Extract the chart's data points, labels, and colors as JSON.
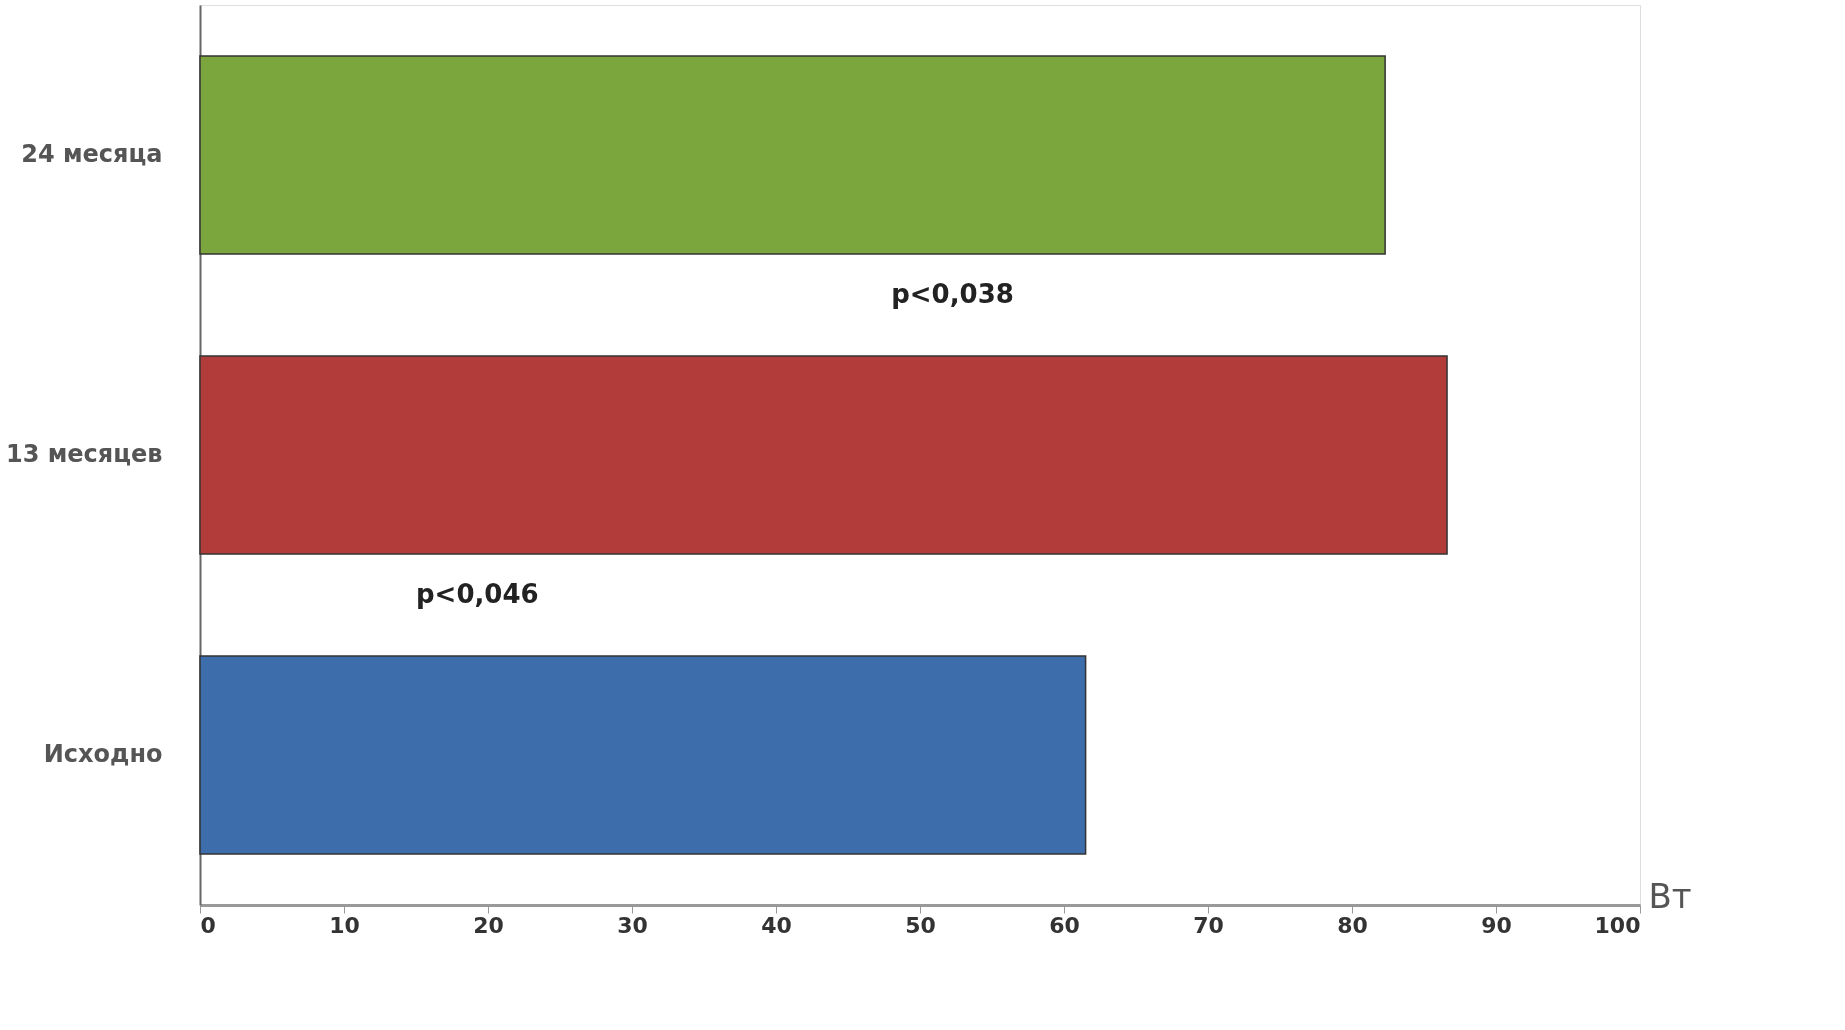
{
  "chart_data": {
    "type": "bar",
    "orientation": "horizontal",
    "xlabel": "Вт",
    "categories": [
      "24 месяца",
      "13 месяцев",
      "Исходно"
    ],
    "values": [
      82.3,
      86.6,
      61.5
    ],
    "colors": [
      "#7ba63e",
      "#b23c3a",
      "#3d6dab"
    ],
    "xlim": [
      0,
      100
    ],
    "xticks": [
      0,
      10,
      20,
      30,
      40,
      50,
      60,
      70,
      80,
      90,
      100
    ],
    "grid": false,
    "annotations": [
      "p<0,038",
      "p<0,046"
    ]
  }
}
